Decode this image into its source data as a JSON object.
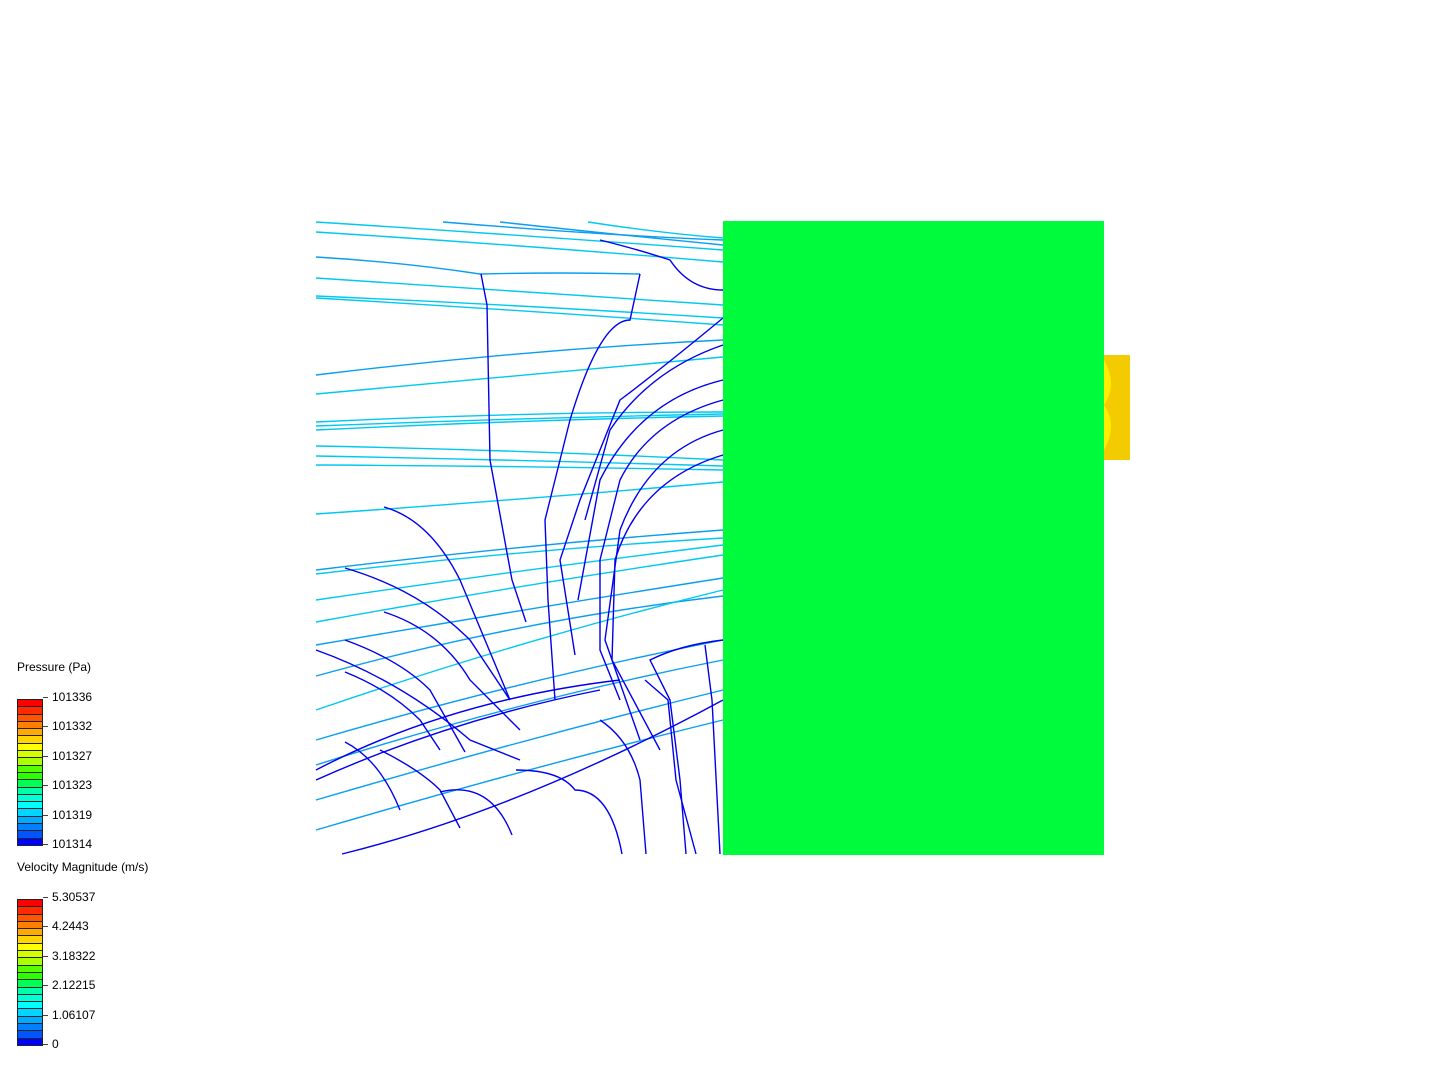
{
  "colormap": [
    "#ff0000",
    "#ff2a00",
    "#ff5500",
    "#ff8000",
    "#ffaa00",
    "#ffd500",
    "#ffff00",
    "#d5ff00",
    "#aaff00",
    "#55ff00",
    "#2aff00",
    "#00ff55",
    "#00ffaa",
    "#00ffd5",
    "#00ffff",
    "#00d5ff",
    "#00aaff",
    "#0080ff",
    "#0055ff",
    "#0000ff"
  ],
  "legends": [
    {
      "title": "Pressure (Pa)",
      "ticks": [
        "101336",
        "101332",
        "101327",
        "101323",
        "101319",
        "101314"
      ]
    },
    {
      "title": "Velocity Magnitude (m/s)",
      "ticks": [
        "5.30537",
        "4.2443",
        "3.18322",
        "2.12215",
        "1.06107",
        "0"
      ]
    }
  ],
  "scene": {
    "body_color": "#00ff3c",
    "outlet_color": "#f5d000",
    "streamline_colors": [
      "#0000ee",
      "#0a9ef0",
      "#00c8f0"
    ]
  }
}
